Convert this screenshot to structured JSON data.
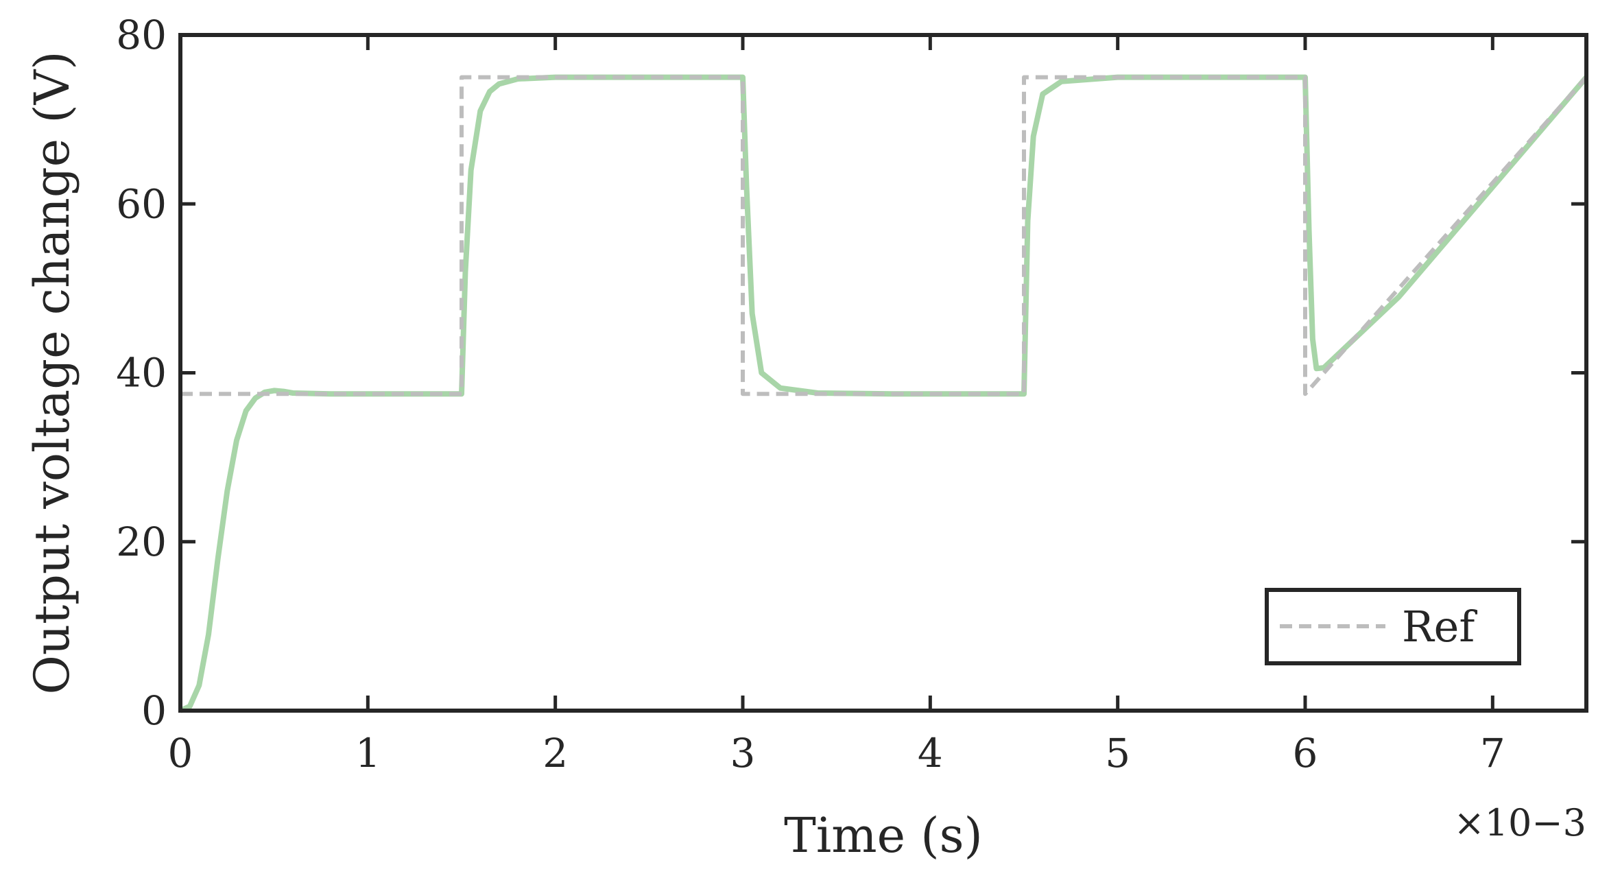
{
  "chart_data": {
    "type": "line",
    "title": "",
    "xlabel": "Time (s)",
    "ylabel": "Output voltage change (V)",
    "x_exponent_label": "×10−3",
    "xlim": [
      0,
      7.5
    ],
    "ylim": [
      0,
      80
    ],
    "x_ticks": [
      0,
      1,
      2,
      3,
      4,
      5,
      6,
      7
    ],
    "x_tick_labels": [
      "0",
      "1",
      "2",
      "3",
      "4",
      "5",
      "6",
      "7"
    ],
    "y_ticks": [
      0,
      20,
      40,
      60,
      80
    ],
    "y_tick_labels": [
      "0",
      "20",
      "40",
      "60",
      "80"
    ],
    "grid": false,
    "legend_position": "bottom-right",
    "legend": [
      "Ref"
    ],
    "series": [
      {
        "name": "Ref",
        "style": "dashed",
        "color": "#bdbdbd",
        "x": [
          0,
          1.5,
          1.5,
          3.0,
          3.0,
          4.5,
          4.5,
          6.0,
          6.0,
          7.5
        ],
        "y": [
          37.5,
          37.5,
          75,
          75,
          37.5,
          37.5,
          75,
          75,
          37.5,
          75
        ]
      },
      {
        "style": "solid",
        "color": "#a8d5a8",
        "x": [
          0,
          0.05,
          0.1,
          0.15,
          0.2,
          0.25,
          0.3,
          0.35,
          0.4,
          0.45,
          0.5,
          0.55,
          0.6,
          0.8,
          1.0,
          1.5,
          1.52,
          1.55,
          1.6,
          1.65,
          1.7,
          1.8,
          2.0,
          2.5,
          3.0,
          3.02,
          3.05,
          3.1,
          3.2,
          3.4,
          3.8,
          4.5,
          4.52,
          4.55,
          4.6,
          4.7,
          5.0,
          6.0,
          6.02,
          6.04,
          6.06,
          6.1,
          6.5,
          7.0,
          7.5
        ],
        "y": [
          0,
          0.5,
          3,
          9,
          18,
          26,
          32,
          35.5,
          37,
          37.7,
          37.9,
          37.8,
          37.6,
          37.5,
          37.5,
          37.5,
          52,
          64,
          71,
          73.3,
          74.2,
          74.8,
          75,
          75,
          75,
          62,
          47,
          40,
          38.2,
          37.6,
          37.5,
          37.5,
          58,
          68,
          73,
          74.5,
          75,
          75,
          57,
          44,
          40.5,
          40.6,
          49,
          62,
          75
        ]
      }
    ]
  }
}
